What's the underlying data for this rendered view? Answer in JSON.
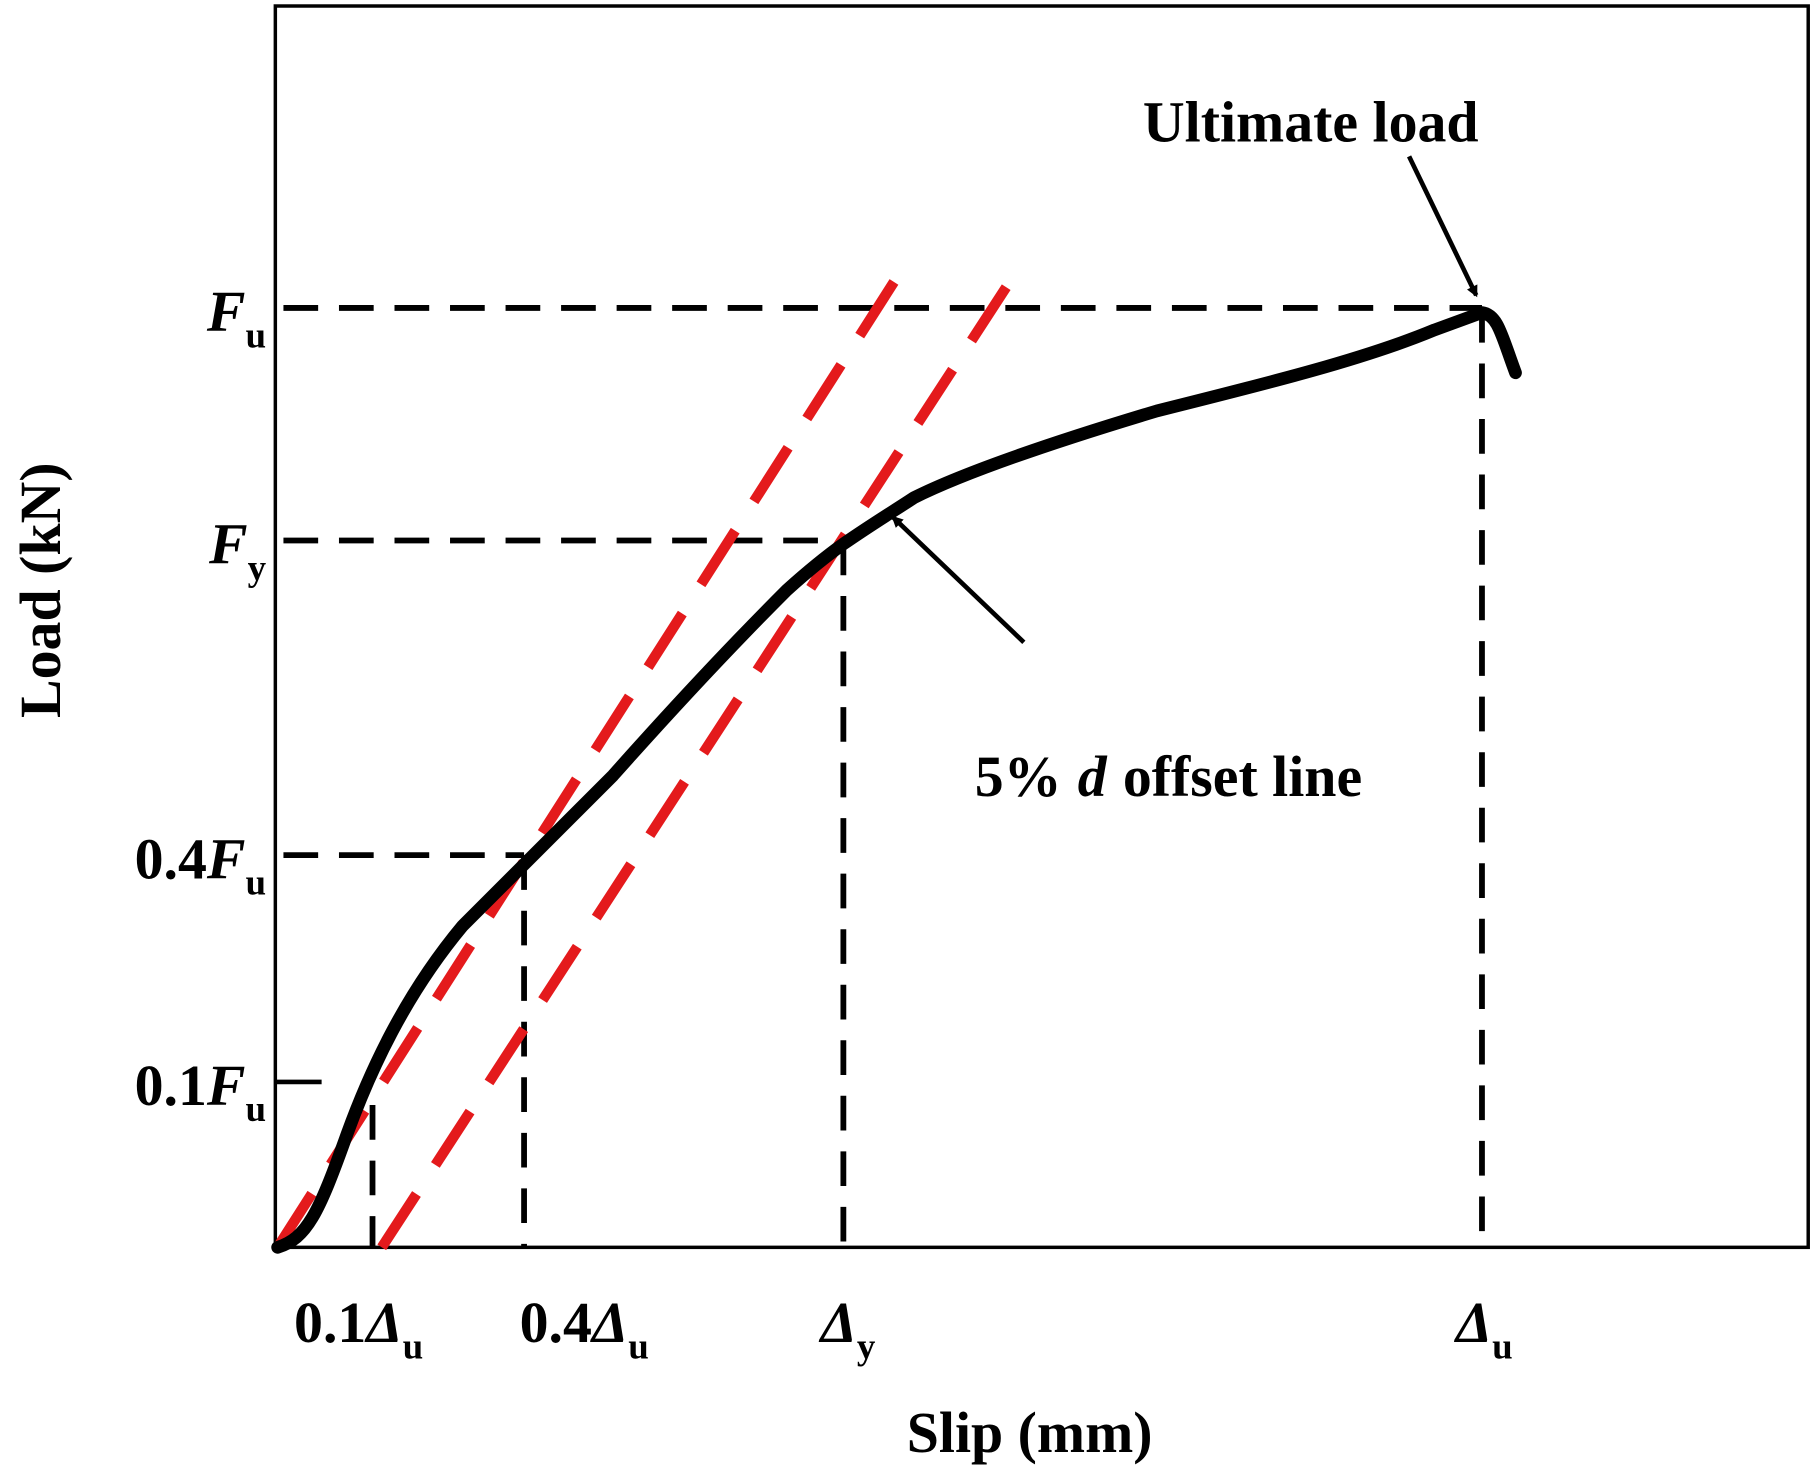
{
  "axes": {
    "x_label": "Slip (mm)",
    "y_label": "Load (kN)"
  },
  "y_ticks": [
    {
      "symbol": "F",
      "sub": "u"
    },
    {
      "symbol": "F",
      "sub": "y"
    },
    {
      "coef": "0.4",
      "symbol": "F",
      "sub": "u"
    },
    {
      "coef": "0.1",
      "symbol": "F",
      "sub": "u"
    }
  ],
  "x_ticks": [
    {
      "coef": "0.1",
      "symbol": "Δ",
      "sub": "u"
    },
    {
      "coef": "0.4",
      "symbol": "Δ",
      "sub": "u"
    },
    {
      "symbol": "Δ",
      "sub": "y"
    },
    {
      "symbol": "Δ",
      "sub": "u"
    }
  ],
  "annotations": {
    "ultimate_load": "Ultimate load",
    "offset_line": {
      "prefix": "5%",
      "symbol": "d",
      "suffix": "offset line"
    }
  }
}
